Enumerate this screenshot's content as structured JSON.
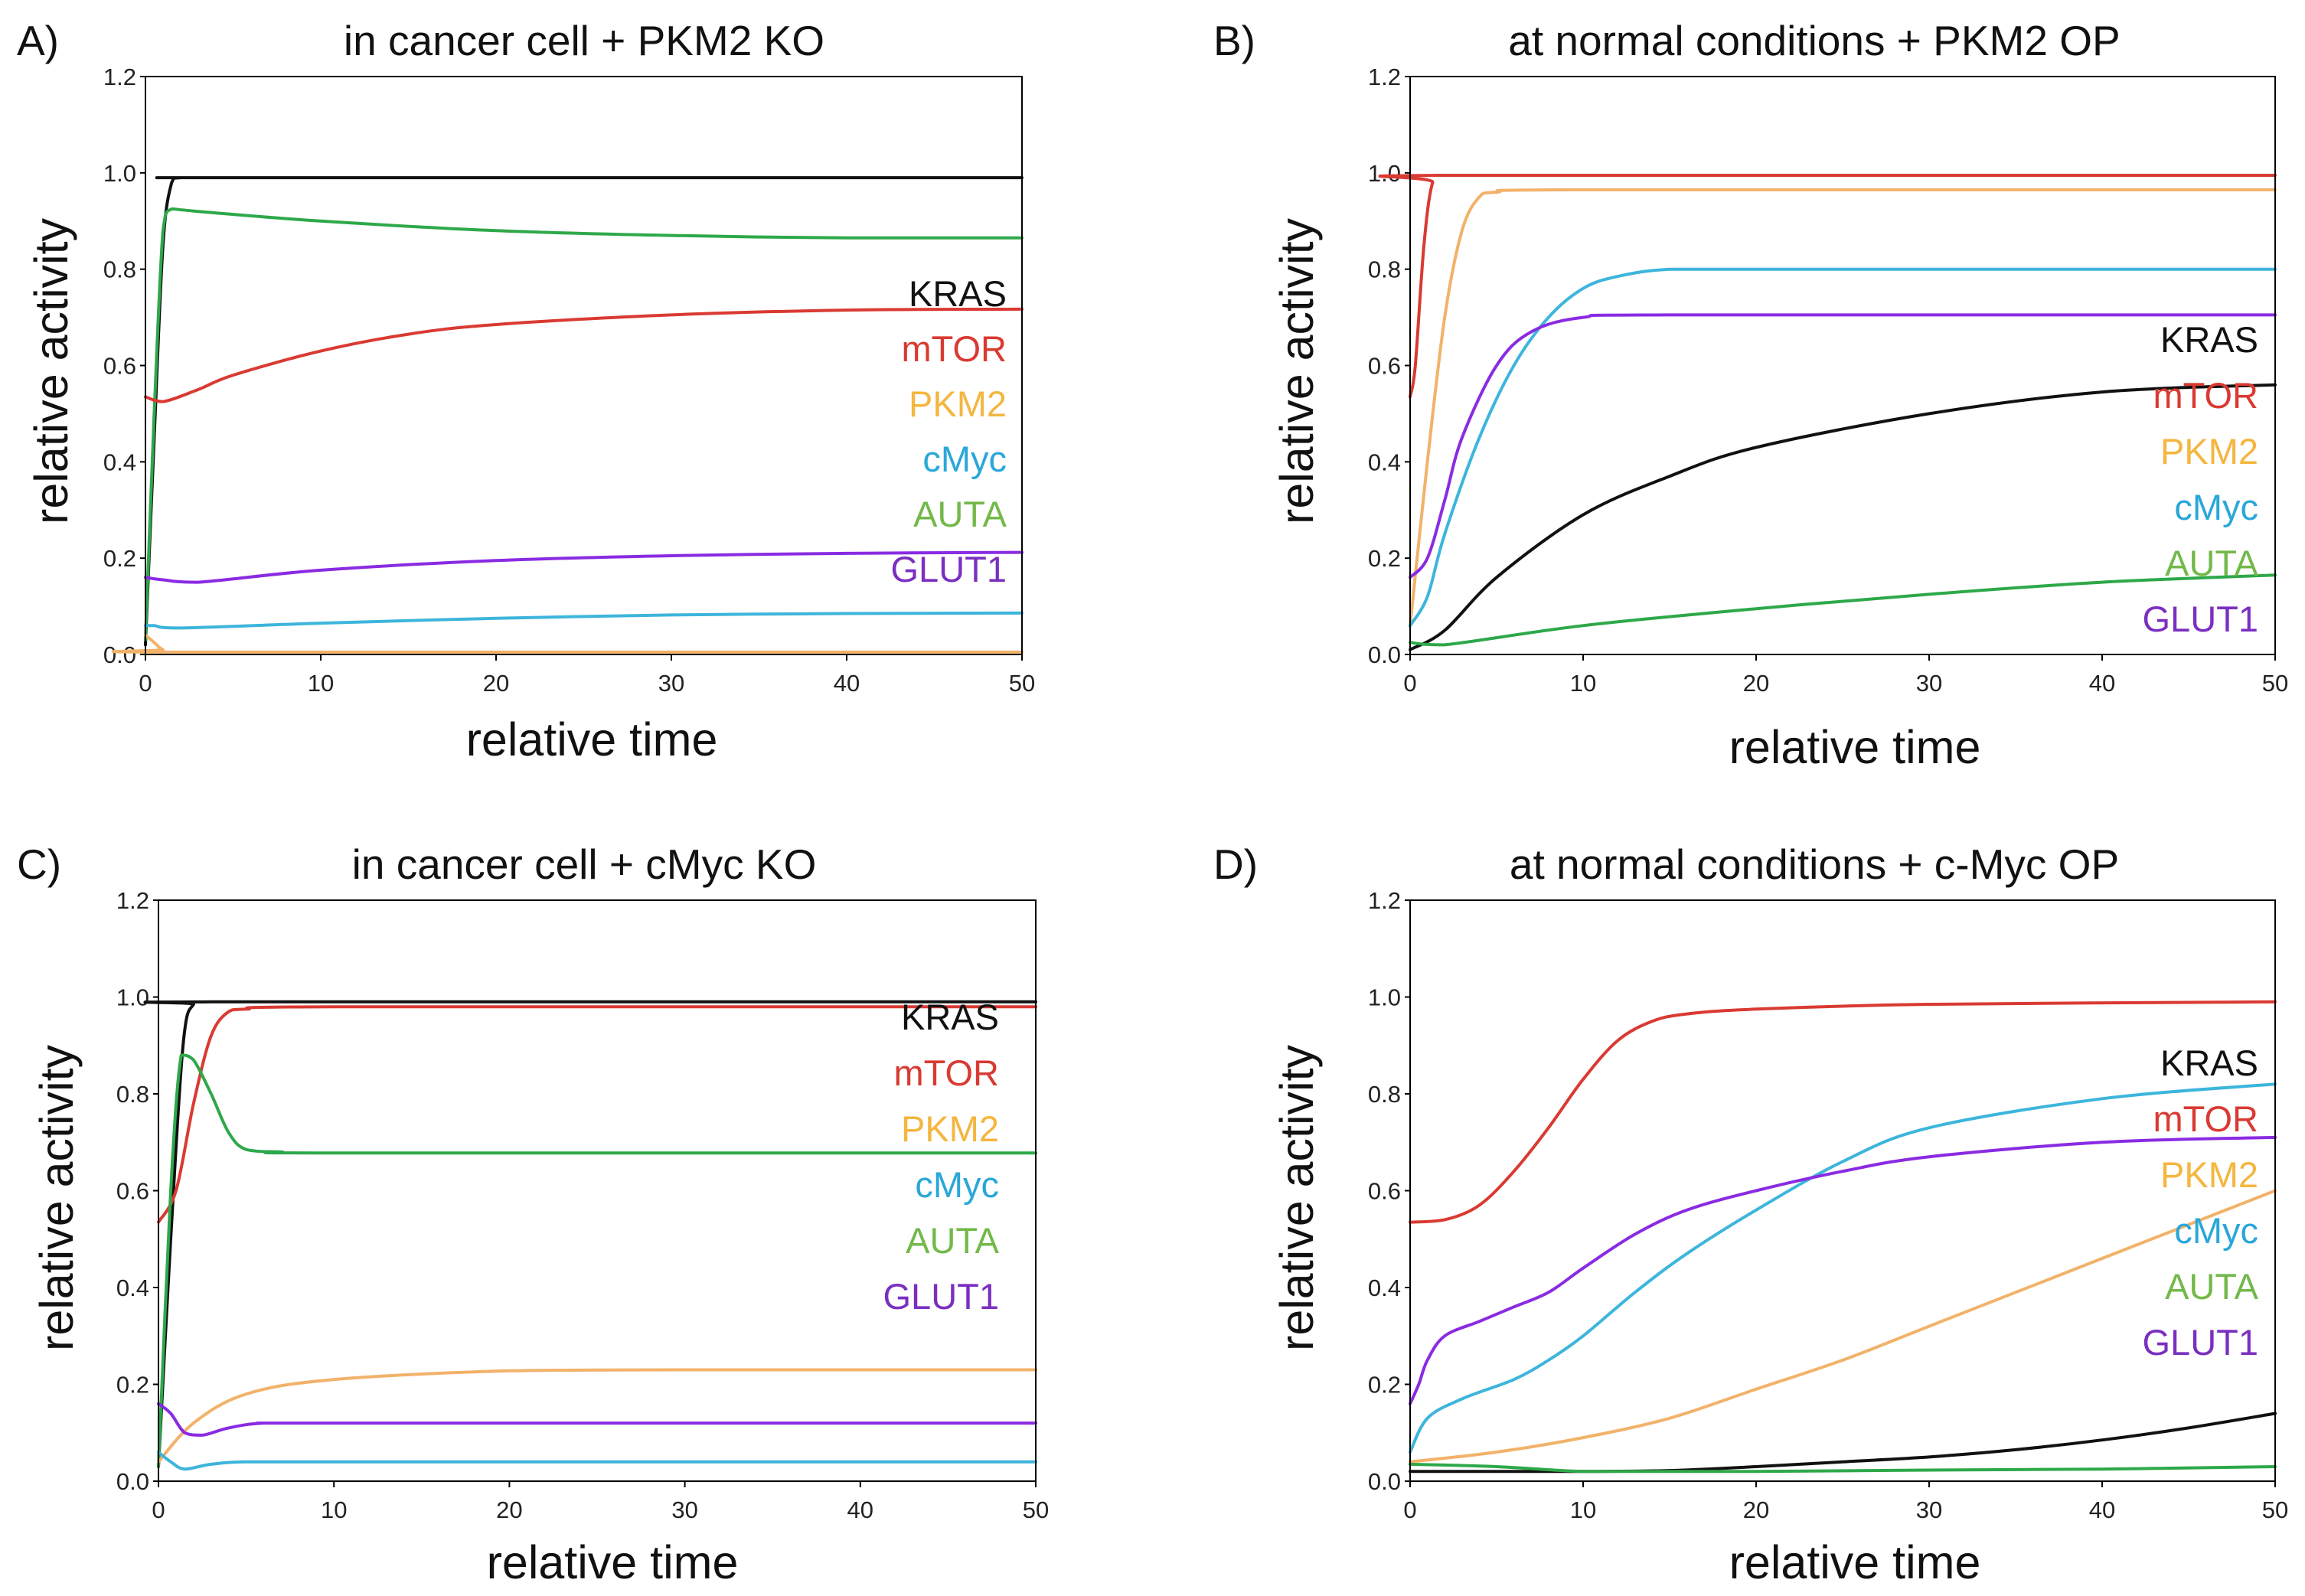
{
  "figure": {
    "series_colors": {
      "KRAS": "#111111",
      "mTOR": "#d93a32",
      "PKM2": "#f2b26a",
      "cMyc": "#3db5dc",
      "AUTA": "#2ea84a",
      "GLUT1": "#8a2be2"
    },
    "legend_colors": {
      "KRAS": "#111111",
      "mTOR": "#d93a32",
      "PKM2": "#f4b63f",
      "cMyc": "#2aa7d9",
      "AUTA": "#73b94a",
      "GLUT1": "#7a2fc0"
    }
  },
  "chart_data": [
    {
      "id": "A",
      "letter": "A)",
      "type": "line",
      "title": "in cancer cell + PKM2 KO",
      "xlabel": "relative time",
      "ylabel": "relative activity",
      "xlim": [
        0,
        50
      ],
      "ylim": [
        0,
        1.2
      ],
      "xticks": [
        "0",
        "10",
        "20",
        "30",
        "40",
        "50"
      ],
      "yticks": [
        "0.0",
        "0.2",
        "0.4",
        "0.6",
        "0.8",
        "1.0",
        "1.2"
      ],
      "legend": [
        "KRAS",
        "mTOR",
        "PKM2",
        "cMyc",
        "AUTA",
        "GLUT1"
      ],
      "legend_position": "right",
      "series": [
        {
          "name": "KRAS",
          "x": [
            0,
            0.5,
            1,
            1.5,
            2,
            5,
            50
          ],
          "y": [
            0.02,
            0.45,
            0.85,
            0.98,
            0.99,
            0.99,
            0.99
          ]
        },
        {
          "name": "AUTA",
          "x": [
            0,
            0.5,
            1,
            1.5,
            3,
            10,
            20,
            30,
            40,
            50
          ],
          "y": [
            0.03,
            0.5,
            0.88,
            0.925,
            0.92,
            0.9,
            0.88,
            0.87,
            0.865,
            0.865
          ]
        },
        {
          "name": "mTOR",
          "x": [
            0,
            1,
            3,
            5,
            10,
            15,
            20,
            30,
            40,
            50
          ],
          "y": [
            0.535,
            0.525,
            0.55,
            0.58,
            0.63,
            0.665,
            0.685,
            0.705,
            0.715,
            0.717
          ]
        },
        {
          "name": "GLUT1",
          "x": [
            0,
            1,
            3,
            10,
            20,
            30,
            40,
            50
          ],
          "y": [
            0.16,
            0.155,
            0.15,
            0.175,
            0.195,
            0.205,
            0.21,
            0.212
          ]
        },
        {
          "name": "cMyc",
          "x": [
            0,
            0.5,
            2,
            10,
            20,
            30,
            40,
            50
          ],
          "y": [
            0.06,
            0.06,
            0.055,
            0.065,
            0.075,
            0.082,
            0.085,
            0.086
          ]
        },
        {
          "name": "PKM2",
          "x": [
            0,
            0.5,
            1,
            2,
            50
          ],
          "y": [
            0.04,
            0.025,
            0.01,
            0.005,
            0.005
          ]
        }
      ]
    },
    {
      "id": "B",
      "letter": "B)",
      "type": "line",
      "title": "at normal conditions + PKM2 OP",
      "xlabel": "relative time",
      "ylabel": "relative activity",
      "xlim": [
        0,
        50
      ],
      "ylim": [
        0,
        1.2
      ],
      "xticks": [
        "0",
        "10",
        "20",
        "30",
        "40",
        "50"
      ],
      "yticks": [
        "0.0",
        "0.2",
        "0.4",
        "0.6",
        "0.8",
        "1.0",
        "1.2"
      ],
      "legend": [
        "KRAS",
        "mTOR",
        "PKM2",
        "cMyc",
        "AUTA",
        "GLUT1"
      ],
      "legend_position": "right",
      "series": [
        {
          "name": "mTOR",
          "x": [
            0,
            0.3,
            0.8,
            1.3,
            2,
            50
          ],
          "y": [
            0.535,
            0.6,
            0.85,
            0.98,
            0.995,
            0.995
          ]
        },
        {
          "name": "PKM2",
          "x": [
            0,
            1,
            2,
            3,
            4,
            5,
            10,
            50
          ],
          "y": [
            0.06,
            0.4,
            0.7,
            0.88,
            0.95,
            0.96,
            0.965,
            0.965
          ]
        },
        {
          "name": "cMyc",
          "x": [
            0,
            1,
            2,
            4,
            6,
            8,
            10,
            12,
            15,
            20,
            50
          ],
          "y": [
            0.06,
            0.12,
            0.25,
            0.45,
            0.6,
            0.7,
            0.76,
            0.785,
            0.8,
            0.8,
            0.8
          ]
        },
        {
          "name": "GLUT1",
          "x": [
            0,
            1,
            2,
            3,
            5,
            7,
            10,
            15,
            50
          ],
          "y": [
            0.16,
            0.2,
            0.32,
            0.45,
            0.6,
            0.67,
            0.7,
            0.705,
            0.705
          ]
        },
        {
          "name": "KRAS",
          "x": [
            0,
            2,
            5,
            10,
            15,
            20,
            30,
            40,
            50
          ],
          "y": [
            0.01,
            0.05,
            0.16,
            0.29,
            0.37,
            0.43,
            0.5,
            0.545,
            0.56
          ]
        },
        {
          "name": "AUTA",
          "x": [
            0,
            2,
            10,
            20,
            30,
            40,
            50
          ],
          "y": [
            0.025,
            0.02,
            0.06,
            0.095,
            0.125,
            0.15,
            0.165
          ]
        }
      ]
    },
    {
      "id": "C",
      "letter": "C)",
      "type": "line",
      "title": "in cancer cell + cMyc KO",
      "xlabel": "relative time",
      "ylabel": "relative activity",
      "xlim": [
        0,
        50
      ],
      "ylim": [
        0,
        1.2
      ],
      "xticks": [
        "0",
        "10",
        "20",
        "30",
        "40",
        "50"
      ],
      "yticks": [
        "0.0",
        "0.2",
        "0.4",
        "0.6",
        "0.8",
        "1.0",
        "1.2"
      ],
      "legend": [
        "KRAS",
        "mTOR",
        "PKM2",
        "cMyc",
        "AUTA",
        "GLUT1"
      ],
      "legend_position": "right",
      "series": [
        {
          "name": "KRAS",
          "x": [
            0,
            0.7,
            1.4,
            2,
            3,
            50
          ],
          "y": [
            0.03,
            0.5,
            0.9,
            0.985,
            0.99,
            0.99
          ]
        },
        {
          "name": "mTOR",
          "x": [
            0,
            1,
            2,
            3,
            4,
            5,
            10,
            50
          ],
          "y": [
            0.535,
            0.6,
            0.78,
            0.92,
            0.97,
            0.975,
            0.98,
            0.98
          ]
        },
        {
          "name": "AUTA",
          "x": [
            0,
            0.7,
            1.3,
            2,
            3,
            4,
            5,
            7,
            10,
            50
          ],
          "y": [
            0.03,
            0.6,
            0.88,
            0.87,
            0.8,
            0.72,
            0.685,
            0.68,
            0.678,
            0.678
          ]
        },
        {
          "name": "PKM2",
          "x": [
            0,
            2,
            5,
            10,
            20,
            30,
            50
          ],
          "y": [
            0.04,
            0.12,
            0.18,
            0.21,
            0.228,
            0.23,
            0.23
          ]
        },
        {
          "name": "GLUT1",
          "x": [
            0,
            0.7,
            1.5,
            2.5,
            4,
            6,
            10,
            50
          ],
          "y": [
            0.16,
            0.14,
            0.1,
            0.095,
            0.11,
            0.12,
            0.12,
            0.12
          ]
        },
        {
          "name": "cMyc",
          "x": [
            0,
            0.7,
            1.5,
            3,
            5,
            10,
            50
          ],
          "y": [
            0.06,
            0.04,
            0.025,
            0.035,
            0.04,
            0.04,
            0.04
          ]
        }
      ]
    },
    {
      "id": "D",
      "letter": "D)",
      "type": "line",
      "title": "at normal conditions + c-Myc OP",
      "xlabel": "relative time",
      "ylabel": "relative activity",
      "xlim": [
        0,
        50
      ],
      "ylim": [
        0,
        1.2
      ],
      "xticks": [
        "0",
        "10",
        "20",
        "30",
        "40",
        "50"
      ],
      "yticks": [
        "0.0",
        "0.2",
        "0.4",
        "0.6",
        "0.8",
        "1.0",
        "1.2"
      ],
      "legend": [
        "KRAS",
        "mTOR",
        "PKM2",
        "cMyc",
        "AUTA",
        "GLUT1"
      ],
      "legend_position": "right",
      "series": [
        {
          "name": "mTOR",
          "x": [
            0,
            2,
            4,
            6,
            8,
            10,
            12,
            14,
            16,
            20,
            30,
            50
          ],
          "y": [
            0.535,
            0.54,
            0.57,
            0.64,
            0.73,
            0.83,
            0.91,
            0.95,
            0.965,
            0.975,
            0.985,
            0.99
          ]
        },
        {
          "name": "cMyc",
          "x": [
            0,
            1,
            3,
            6,
            8,
            10,
            13,
            16,
            20,
            25,
            30,
            40,
            50
          ],
          "y": [
            0.06,
            0.13,
            0.17,
            0.21,
            0.25,
            0.3,
            0.39,
            0.47,
            0.56,
            0.66,
            0.73,
            0.79,
            0.82
          ]
        },
        {
          "name": "GLUT1",
          "x": [
            0,
            0.5,
            1,
            2,
            4,
            6,
            8,
            10,
            13,
            16,
            20,
            25,
            30,
            40,
            50
          ],
          "y": [
            0.16,
            0.2,
            0.25,
            0.3,
            0.33,
            0.36,
            0.39,
            0.44,
            0.51,
            0.56,
            0.6,
            0.64,
            0.67,
            0.7,
            0.71
          ]
        },
        {
          "name": "PKM2",
          "x": [
            0,
            5,
            10,
            15,
            20,
            25,
            30,
            35,
            40,
            45,
            50
          ],
          "y": [
            0.04,
            0.06,
            0.09,
            0.13,
            0.19,
            0.25,
            0.32,
            0.39,
            0.46,
            0.53,
            0.6
          ]
        },
        {
          "name": "KRAS",
          "x": [
            0,
            5,
            10,
            15,
            20,
            25,
            30,
            35,
            40,
            45,
            50
          ],
          "y": [
            0.02,
            0.02,
            0.02,
            0.022,
            0.03,
            0.04,
            0.05,
            0.065,
            0.085,
            0.11,
            0.14
          ]
        },
        {
          "name": "AUTA",
          "x": [
            0,
            5,
            10,
            15,
            20,
            30,
            40,
            50
          ],
          "y": [
            0.035,
            0.03,
            0.02,
            0.02,
            0.02,
            0.023,
            0.025,
            0.03
          ]
        }
      ]
    }
  ]
}
